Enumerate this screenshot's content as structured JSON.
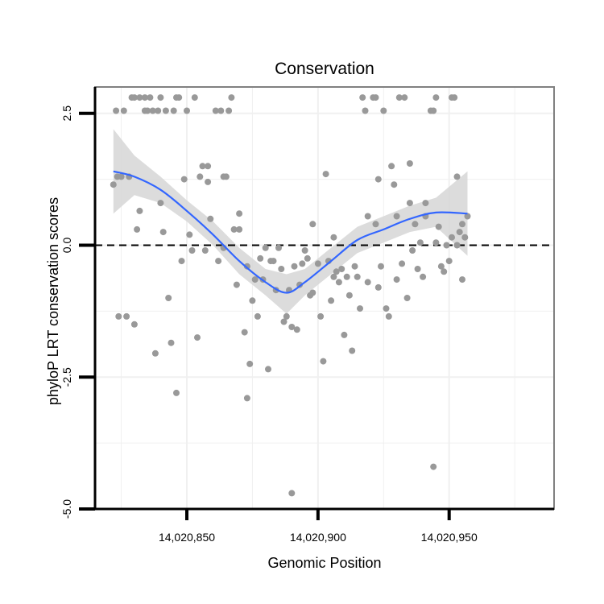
{
  "chart_data": {
    "type": "scatter",
    "title": "Conservation",
    "xlabel": "Genomic Position",
    "ylabel": "phyloP LRT conservation scores",
    "xlim": [
      14020815,
      14020990
    ],
    "ylim": [
      -5.0,
      3.0
    ],
    "x_ticks": [
      14020850,
      14020900,
      14020950
    ],
    "x_tick_labels": [
      "14,020,850",
      "14,020,900",
      "14,020,950"
    ],
    "y_ticks": [
      -5.0,
      -2.5,
      0.0,
      2.5
    ],
    "y_tick_labels": [
      "-5.0",
      "-2.5",
      "0.0",
      "2.5"
    ],
    "reference_line": {
      "y": 0,
      "style": "dashed"
    },
    "colors": {
      "points": "#999999",
      "smooth_line": "#3366ff",
      "ribbon": "#d6d6d6",
      "grid": "#f0f0f0",
      "panel_border": "#808080"
    },
    "series": [
      {
        "name": "scores",
        "points": [
          [
            14020822,
            1.15
          ],
          [
            14020823,
            2.55
          ],
          [
            14020823.5,
            1.3
          ],
          [
            14020824,
            -1.35
          ],
          [
            14020825,
            1.3
          ],
          [
            14020826,
            2.55
          ],
          [
            14020827,
            -1.35
          ],
          [
            14020828,
            1.3
          ],
          [
            14020829,
            2.8
          ],
          [
            14020830,
            -1.5
          ],
          [
            14020830,
            2.8
          ],
          [
            14020831,
            0.3
          ],
          [
            14020832,
            0.65
          ],
          [
            14020832,
            2.8
          ],
          [
            14020834,
            2.55
          ],
          [
            14020834,
            2.8
          ],
          [
            14020835,
            2.55
          ],
          [
            14020836,
            2.8
          ],
          [
            14020837,
            2.55
          ],
          [
            14020838,
            -2.05
          ],
          [
            14020839,
            2.55
          ],
          [
            14020840,
            0.8
          ],
          [
            14020840,
            2.8
          ],
          [
            14020841,
            0.25
          ],
          [
            14020842,
            2.55
          ],
          [
            14020843,
            -1.0
          ],
          [
            14020844,
            -1.85
          ],
          [
            14020845,
            2.55
          ],
          [
            14020846,
            -2.8
          ],
          [
            14020846,
            2.8
          ],
          [
            14020847,
            2.8
          ],
          [
            14020848,
            -0.3
          ],
          [
            14020849,
            1.25
          ],
          [
            14020850,
            2.55
          ],
          [
            14020851,
            0.2
          ],
          [
            14020852,
            -0.1
          ],
          [
            14020853,
            2.8
          ],
          [
            14020854,
            -1.75
          ],
          [
            14020855,
            1.3
          ],
          [
            14020856,
            1.5
          ],
          [
            14020857,
            -0.1
          ],
          [
            14020858,
            1.2
          ],
          [
            14020858,
            1.5
          ],
          [
            14020859,
            0.5
          ],
          [
            14020861,
            2.55
          ],
          [
            14020862,
            -0.3
          ],
          [
            14020863,
            2.55
          ],
          [
            14020864,
            1.3
          ],
          [
            14020864,
            -0.05
          ],
          [
            14020865,
            1.3
          ],
          [
            14020866,
            2.55
          ],
          [
            14020867,
            2.8
          ],
          [
            14020868,
            0.3
          ],
          [
            14020869,
            -0.75
          ],
          [
            14020870,
            0.6
          ],
          [
            14020870,
            0.3
          ],
          [
            14020872,
            -1.65
          ],
          [
            14020873,
            -0.4
          ],
          [
            14020873,
            -2.9
          ],
          [
            14020874,
            -2.25
          ],
          [
            14020875,
            -1.05
          ],
          [
            14020876,
            -0.65
          ],
          [
            14020877,
            -1.35
          ],
          [
            14020878,
            -0.25
          ],
          [
            14020879,
            -0.65
          ],
          [
            14020880,
            -0.05
          ],
          [
            14020881,
            -2.35
          ],
          [
            14020882,
            -0.3
          ],
          [
            14020883,
            -0.3
          ],
          [
            14020884,
            -0.85
          ],
          [
            14020885,
            -0.05
          ],
          [
            14020886,
            -0.45
          ],
          [
            14020887,
            -1.45
          ],
          [
            14020888,
            -1.35
          ],
          [
            14020889,
            -0.85
          ],
          [
            14020890,
            -1.55
          ],
          [
            14020890,
            -4.7
          ],
          [
            14020891,
            -0.4
          ],
          [
            14020892,
            -1.6
          ],
          [
            14020893,
            -0.75
          ],
          [
            14020894,
            -0.35
          ],
          [
            14020895,
            -0.1
          ],
          [
            14020896,
            -0.25
          ],
          [
            14020897,
            -0.95
          ],
          [
            14020898,
            -0.9
          ],
          [
            14020898,
            0.4
          ],
          [
            14020900,
            -0.35
          ],
          [
            14020901,
            -1.35
          ],
          [
            14020902,
            -2.2
          ],
          [
            14020903,
            1.35
          ],
          [
            14020904,
            -0.3
          ],
          [
            14020905,
            -1.05
          ],
          [
            14020906,
            -0.6
          ],
          [
            14020906,
            0.15
          ],
          [
            14020907,
            -0.5
          ],
          [
            14020908,
            -0.7
          ],
          [
            14020909,
            -0.45
          ],
          [
            14020910,
            -1.7
          ],
          [
            14020911,
            -0.6
          ],
          [
            14020912,
            -0.95
          ],
          [
            14020913,
            -2.0
          ],
          [
            14020914,
            -0.4
          ],
          [
            14020915,
            -0.6
          ],
          [
            14020916,
            -1.2
          ],
          [
            14020917,
            2.8
          ],
          [
            14020918,
            2.55
          ],
          [
            14020919,
            -0.7
          ],
          [
            14020919,
            0.55
          ],
          [
            14020921,
            2.8
          ],
          [
            14020922,
            0.4
          ],
          [
            14020922,
            2.8
          ],
          [
            14020923,
            -0.8
          ],
          [
            14020923,
            1.25
          ],
          [
            14020924,
            -0.4
          ],
          [
            14020925,
            2.55
          ],
          [
            14020926,
            -1.2
          ],
          [
            14020927,
            -1.35
          ],
          [
            14020928,
            1.5
          ],
          [
            14020929,
            1.15
          ],
          [
            14020930,
            -0.65
          ],
          [
            14020930,
            0.55
          ],
          [
            14020931,
            2.8
          ],
          [
            14020932,
            -0.35
          ],
          [
            14020933,
            2.8
          ],
          [
            14020934,
            -1.0
          ],
          [
            14020935,
            1.55
          ],
          [
            14020935,
            0.8
          ],
          [
            14020936,
            -0.1
          ],
          [
            14020937,
            0.4
          ],
          [
            14020938,
            -0.45
          ],
          [
            14020939,
            0.05
          ],
          [
            14020940,
            -0.6
          ],
          [
            14020941,
            0.8
          ],
          [
            14020941,
            0.55
          ],
          [
            14020943,
            2.55
          ],
          [
            14020944,
            2.55
          ],
          [
            14020944,
            -4.2
          ],
          [
            14020945,
            0.05
          ],
          [
            14020945,
            2.8
          ],
          [
            14020946,
            0.35
          ],
          [
            14020947,
            -0.4
          ],
          [
            14020948,
            -0.5
          ],
          [
            14020949,
            0.0
          ],
          [
            14020950,
            -0.3
          ],
          [
            14020951,
            0.15
          ],
          [
            14020951,
            2.8
          ],
          [
            14020952,
            2.8
          ],
          [
            14020953,
            1.3
          ],
          [
            14020953,
            0.0
          ],
          [
            14020954,
            0.25
          ],
          [
            14020955,
            -0.65
          ],
          [
            14020955,
            0.4
          ],
          [
            14020956,
            0.15
          ],
          [
            14020957,
            0.55
          ]
        ]
      }
    ],
    "smooth": [
      {
        "x": 14020822,
        "y": 1.4,
        "lo": 0.6,
        "hi": 2.2
      },
      {
        "x": 14020830,
        "y": 1.3,
        "lo": 0.95,
        "hi": 1.7
      },
      {
        "x": 14020840,
        "y": 1.05,
        "lo": 0.8,
        "hi": 1.3
      },
      {
        "x": 14020850,
        "y": 0.65,
        "lo": 0.45,
        "hi": 0.85
      },
      {
        "x": 14020860,
        "y": 0.2,
        "lo": 0.0,
        "hi": 0.45
      },
      {
        "x": 14020870,
        "y": -0.3,
        "lo": -0.55,
        "hi": -0.05
      },
      {
        "x": 14020880,
        "y": -0.7,
        "lo": -0.95,
        "hi": -0.45
      },
      {
        "x": 14020888,
        "y": -0.9,
        "lo": -1.3,
        "hi": -0.55
      },
      {
        "x": 14020895,
        "y": -0.7,
        "lo": -0.95,
        "hi": -0.45
      },
      {
        "x": 14020905,
        "y": -0.3,
        "lo": -0.55,
        "hi": -0.05
      },
      {
        "x": 14020915,
        "y": 0.1,
        "lo": -0.15,
        "hi": 0.35
      },
      {
        "x": 14020925,
        "y": 0.3,
        "lo": 0.05,
        "hi": 0.55
      },
      {
        "x": 14020935,
        "y": 0.5,
        "lo": 0.25,
        "hi": 0.75
      },
      {
        "x": 14020945,
        "y": 0.62,
        "lo": 0.35,
        "hi": 0.9
      },
      {
        "x": 14020957,
        "y": 0.6,
        "lo": -0.2,
        "hi": 1.4
      }
    ]
  }
}
